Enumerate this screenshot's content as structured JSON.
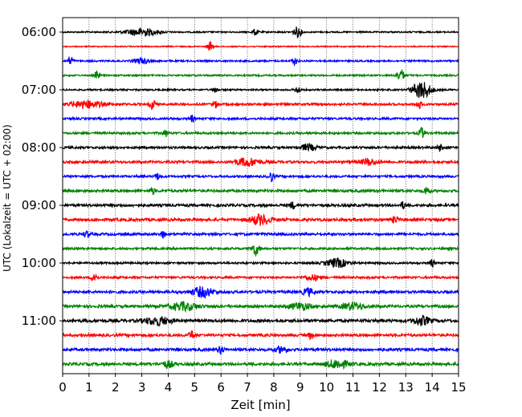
{
  "chart_data": {
    "type": "line",
    "xlabel": "Zeit  [min]",
    "ylabel": "UTC (Lokalzeit = UTC + 02:00)",
    "xlim": [
      0,
      15
    ],
    "x_ticks": [
      "0",
      "1",
      "2",
      "3",
      "4",
      "5",
      "6",
      "7",
      "8",
      "9",
      "10",
      "11",
      "12",
      "13",
      "14",
      "15"
    ],
    "y_ticks": [
      "06:00",
      "07:00",
      "08:00",
      "09:00",
      "10:00",
      "11:00"
    ],
    "grid": "vertical dotted lines at each minute",
    "trace_interval_minutes": 15,
    "first_trace": "06:00",
    "colors": [
      "#000000",
      "#ff0000",
      "#0000ff",
      "#008000"
    ],
    "traces": [
      {
        "start": "06:00",
        "color": "#000000",
        "amplitude": 0.9,
        "events": [
          {
            "t": 3.0,
            "a": 2.2,
            "w": 0.6
          },
          {
            "t": 7.3,
            "a": 1.8,
            "w": 0.1
          },
          {
            "t": 8.9,
            "a": 3.0,
            "w": 0.15
          }
        ]
      },
      {
        "start": "06:15",
        "color": "#ff0000",
        "amplitude": 0.7,
        "events": [
          {
            "t": 5.6,
            "a": 2.8,
            "w": 0.1
          }
        ]
      },
      {
        "start": "06:30",
        "color": "#0000ff",
        "amplitude": 1.0,
        "events": [
          {
            "t": 0.3,
            "a": 2.8,
            "w": 0.1
          },
          {
            "t": 3.0,
            "a": 1.5,
            "w": 0.3
          },
          {
            "t": 8.8,
            "a": 2.0,
            "w": 0.1
          }
        ]
      },
      {
        "start": "06:45",
        "color": "#008000",
        "amplitude": 1.0,
        "events": [
          {
            "t": 1.3,
            "a": 2.0,
            "w": 0.1
          },
          {
            "t": 12.8,
            "a": 3.5,
            "w": 0.15
          }
        ]
      },
      {
        "start": "07:00",
        "color": "#000000",
        "amplitude": 1.0,
        "events": [
          {
            "t": 5.8,
            "a": 1.5,
            "w": 0.1
          },
          {
            "t": 8.9,
            "a": 2.0,
            "w": 0.1
          },
          {
            "t": 13.6,
            "a": 5.0,
            "w": 0.35
          }
        ]
      },
      {
        "start": "07:15",
        "color": "#ff0000",
        "amplitude": 1.3,
        "events": [
          {
            "t": 0.9,
            "a": 2.2,
            "w": 0.6
          },
          {
            "t": 3.4,
            "a": 3.0,
            "w": 0.1
          },
          {
            "t": 5.8,
            "a": 1.8,
            "w": 0.1
          },
          {
            "t": 13.5,
            "a": 2.5,
            "w": 0.1
          }
        ]
      },
      {
        "start": "07:30",
        "color": "#0000ff",
        "amplitude": 1.3,
        "events": [
          {
            "t": 4.9,
            "a": 1.8,
            "w": 0.1
          }
        ]
      },
      {
        "start": "07:45",
        "color": "#008000",
        "amplitude": 1.3,
        "events": [
          {
            "t": 3.9,
            "a": 1.8,
            "w": 0.1
          },
          {
            "t": 13.6,
            "a": 3.0,
            "w": 0.1
          }
        ]
      },
      {
        "start": "08:00",
        "color": "#000000",
        "amplitude": 1.4,
        "events": [
          {
            "t": 9.3,
            "a": 1.8,
            "w": 0.3
          },
          {
            "t": 14.3,
            "a": 1.8,
            "w": 0.1
          }
        ]
      },
      {
        "start": "08:15",
        "color": "#ff0000",
        "amplitude": 1.5,
        "events": [
          {
            "t": 7.0,
            "a": 2.2,
            "w": 0.5
          },
          {
            "t": 11.6,
            "a": 1.8,
            "w": 0.3
          }
        ]
      },
      {
        "start": "08:30",
        "color": "#0000ff",
        "amplitude": 1.3,
        "events": [
          {
            "t": 3.6,
            "a": 1.8,
            "w": 0.1
          },
          {
            "t": 7.9,
            "a": 2.8,
            "w": 0.1
          }
        ]
      },
      {
        "start": "08:45",
        "color": "#008000",
        "amplitude": 1.6,
        "events": [
          {
            "t": 3.4,
            "a": 1.8,
            "w": 0.1
          },
          {
            "t": 13.8,
            "a": 2.5,
            "w": 0.1
          }
        ]
      },
      {
        "start": "09:00",
        "color": "#000000",
        "amplitude": 1.6,
        "events": [
          {
            "t": 8.7,
            "a": 1.8,
            "w": 0.1
          },
          {
            "t": 12.9,
            "a": 1.8,
            "w": 0.1
          }
        ]
      },
      {
        "start": "09:15",
        "color": "#ff0000",
        "amplitude": 1.7,
        "events": [
          {
            "t": 7.5,
            "a": 2.8,
            "w": 0.4
          },
          {
            "t": 12.6,
            "a": 2.2,
            "w": 0.1
          }
        ]
      },
      {
        "start": "09:30",
        "color": "#0000ff",
        "amplitude": 1.5,
        "events": [
          {
            "t": 0.9,
            "a": 1.8,
            "w": 0.1
          },
          {
            "t": 3.8,
            "a": 1.8,
            "w": 0.1
          }
        ]
      },
      {
        "start": "09:45",
        "color": "#008000",
        "amplitude": 1.3,
        "events": [
          {
            "t": 7.3,
            "a": 3.5,
            "w": 0.15
          }
        ]
      },
      {
        "start": "10:00",
        "color": "#000000",
        "amplitude": 1.2,
        "events": [
          {
            "t": 10.4,
            "a": 2.5,
            "w": 0.4
          },
          {
            "t": 14.0,
            "a": 1.8,
            "w": 0.1
          }
        ]
      },
      {
        "start": "10:15",
        "color": "#ff0000",
        "amplitude": 1.3,
        "events": [
          {
            "t": 1.2,
            "a": 3.0,
            "w": 0.1
          },
          {
            "t": 9.5,
            "a": 1.5,
            "w": 0.3
          }
        ]
      },
      {
        "start": "10:30",
        "color": "#0000ff",
        "amplitude": 1.6,
        "events": [
          {
            "t": 5.3,
            "a": 2.8,
            "w": 0.4
          },
          {
            "t": 9.3,
            "a": 2.0,
            "w": 0.2
          }
        ]
      },
      {
        "start": "10:45",
        "color": "#008000",
        "amplitude": 1.7,
        "events": [
          {
            "t": 4.6,
            "a": 2.2,
            "w": 0.5
          },
          {
            "t": 9.0,
            "a": 2.0,
            "w": 0.4
          },
          {
            "t": 11.0,
            "a": 2.0,
            "w": 0.4
          }
        ]
      },
      {
        "start": "11:00",
        "color": "#000000",
        "amplitude": 1.8,
        "events": [
          {
            "t": 3.6,
            "a": 2.2,
            "w": 0.5
          },
          {
            "t": 13.6,
            "a": 2.5,
            "w": 0.3
          }
        ]
      },
      {
        "start": "11:15",
        "color": "#ff0000",
        "amplitude": 1.6,
        "events": [
          {
            "t": 4.9,
            "a": 2.5,
            "w": 0.1
          },
          {
            "t": 9.4,
            "a": 1.8,
            "w": 0.1
          }
        ]
      },
      {
        "start": "11:30",
        "color": "#0000ff",
        "amplitude": 1.7,
        "events": [
          {
            "t": 6.0,
            "a": 2.2,
            "w": 0.1
          },
          {
            "t": 8.3,
            "a": 1.8,
            "w": 0.2
          }
        ]
      },
      {
        "start": "11:45",
        "color": "#008000",
        "amplitude": 1.7,
        "events": [
          {
            "t": 4.0,
            "a": 1.8,
            "w": 0.2
          },
          {
            "t": 10.4,
            "a": 2.5,
            "w": 0.4
          }
        ]
      }
    ]
  }
}
